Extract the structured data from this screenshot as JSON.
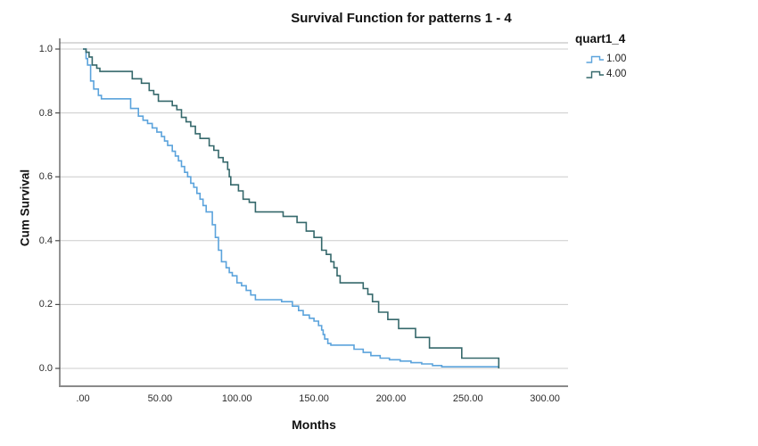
{
  "title": "Survival Function for patterns 1 - 4",
  "legend": {
    "title": "quart1_4",
    "entries": [
      {
        "label": "1.00",
        "color": "#5BA3DC"
      },
      {
        "label": "4.00",
        "color": "#35686B"
      }
    ]
  },
  "colors": {
    "background": "#ffffff",
    "gridline": "#cccccc",
    "frame_border": "#b5b5b5",
    "y_axis_line": "#4a4a4a",
    "x_axis_line": "#8a8a8a",
    "series1": "#5BA3DC",
    "series4": "#35686B",
    "text": "#111111"
  },
  "chart_data": {
    "type": "line",
    "subtype": "step-survival",
    "title": "Survival Function for patterns 1 - 4",
    "xlabel": "Months",
    "ylabel": "Cum Survival",
    "xlim": [
      -15,
      315
    ],
    "ylim": [
      -0.05,
      1.02
    ],
    "grid": "horizontal",
    "legend_position": "top-right",
    "x_ticks": [
      {
        "value": 0,
        "label": ".00"
      },
      {
        "value": 50,
        "label": "50.00"
      },
      {
        "value": 100,
        "label": "100.00"
      },
      {
        "value": 150,
        "label": "150.00"
      },
      {
        "value": 200,
        "label": "200.00"
      },
      {
        "value": 250,
        "label": "250.00"
      },
      {
        "value": 300,
        "label": "300.00"
      }
    ],
    "y_ticks": [
      {
        "value": 0.0,
        "label": "0.0"
      },
      {
        "value": 0.2,
        "label": "0.2"
      },
      {
        "value": 0.4,
        "label": "0.4"
      },
      {
        "value": 0.6,
        "label": "0.6"
      },
      {
        "value": 0.8,
        "label": "0.8"
      },
      {
        "value": 1.0,
        "label": "1.0"
      }
    ],
    "series": [
      {
        "name": "1.00",
        "color": "#5BA3DC",
        "points": [
          [
            0,
            1.0
          ],
          [
            2,
            0.97
          ],
          [
            3,
            0.95
          ],
          [
            5,
            0.9
          ],
          [
            7,
            0.875
          ],
          [
            10,
            0.855
          ],
          [
            12,
            0.844
          ],
          [
            31,
            0.814
          ],
          [
            36,
            0.79
          ],
          [
            39,
            0.777
          ],
          [
            42,
            0.767
          ],
          [
            45,
            0.753
          ],
          [
            48,
            0.74
          ],
          [
            51,
            0.726
          ],
          [
            53,
            0.712
          ],
          [
            55,
            0.698
          ],
          [
            58,
            0.68
          ],
          [
            60,
            0.665
          ],
          [
            62,
            0.65
          ],
          [
            64,
            0.632
          ],
          [
            66,
            0.614
          ],
          [
            68,
            0.6
          ],
          [
            70,
            0.58
          ],
          [
            72,
            0.567
          ],
          [
            74,
            0.548
          ],
          [
            76,
            0.53
          ],
          [
            78,
            0.51
          ],
          [
            80,
            0.49
          ],
          [
            84,
            0.45
          ],
          [
            86,
            0.41
          ],
          [
            88,
            0.37
          ],
          [
            90,
            0.334
          ],
          [
            93,
            0.315
          ],
          [
            95,
            0.3
          ],
          [
            97,
            0.29
          ],
          [
            100,
            0.268
          ],
          [
            103,
            0.259
          ],
          [
            106,
            0.244
          ],
          [
            109,
            0.23
          ],
          [
            112,
            0.215
          ],
          [
            129,
            0.209
          ],
          [
            136,
            0.195
          ],
          [
            140,
            0.181
          ],
          [
            143,
            0.167
          ],
          [
            147,
            0.157
          ],
          [
            150,
            0.148
          ],
          [
            153,
            0.134
          ],
          [
            155,
            0.12
          ],
          [
            156,
            0.106
          ],
          [
            157,
            0.092
          ],
          [
            159,
            0.078
          ],
          [
            161,
            0.073
          ],
          [
            176,
            0.06
          ],
          [
            182,
            0.05
          ],
          [
            187,
            0.04
          ],
          [
            193,
            0.032
          ],
          [
            199,
            0.027
          ],
          [
            206,
            0.023
          ],
          [
            213,
            0.018
          ],
          [
            220,
            0.014
          ],
          [
            227,
            0.009
          ],
          [
            233,
            0.005
          ],
          [
            270,
            0.003
          ]
        ]
      },
      {
        "name": "4.00",
        "color": "#35686B",
        "points": [
          [
            0,
            1.0
          ],
          [
            2,
            0.99
          ],
          [
            4,
            0.975
          ],
          [
            6,
            0.95
          ],
          [
            9,
            0.94
          ],
          [
            11,
            0.93
          ],
          [
            32,
            0.907
          ],
          [
            38,
            0.893
          ],
          [
            43,
            0.87
          ],
          [
            46,
            0.858
          ],
          [
            49,
            0.837
          ],
          [
            58,
            0.823
          ],
          [
            61,
            0.81
          ],
          [
            64,
            0.786
          ],
          [
            67,
            0.772
          ],
          [
            70,
            0.758
          ],
          [
            73,
            0.735
          ],
          [
            76,
            0.72
          ],
          [
            82,
            0.697
          ],
          [
            85,
            0.683
          ],
          [
            88,
            0.66
          ],
          [
            91,
            0.646
          ],
          [
            94,
            0.623
          ],
          [
            95,
            0.6
          ],
          [
            96,
            0.575
          ],
          [
            101,
            0.556
          ],
          [
            104,
            0.53
          ],
          [
            108,
            0.52
          ],
          [
            112,
            0.49
          ],
          [
            130,
            0.476
          ],
          [
            139,
            0.457
          ],
          [
            145,
            0.43
          ],
          [
            150,
            0.41
          ],
          [
            155,
            0.37
          ],
          [
            158,
            0.357
          ],
          [
            161,
            0.334
          ],
          [
            163,
            0.315
          ],
          [
            165,
            0.29
          ],
          [
            167,
            0.268
          ],
          [
            182,
            0.25
          ],
          [
            185,
            0.232
          ],
          [
            188,
            0.209
          ],
          [
            192,
            0.176
          ],
          [
            198,
            0.153
          ],
          [
            205,
            0.125
          ],
          [
            216,
            0.097
          ],
          [
            225,
            0.064
          ],
          [
            246,
            0.032
          ],
          [
            270,
            0.0
          ]
        ]
      }
    ]
  }
}
